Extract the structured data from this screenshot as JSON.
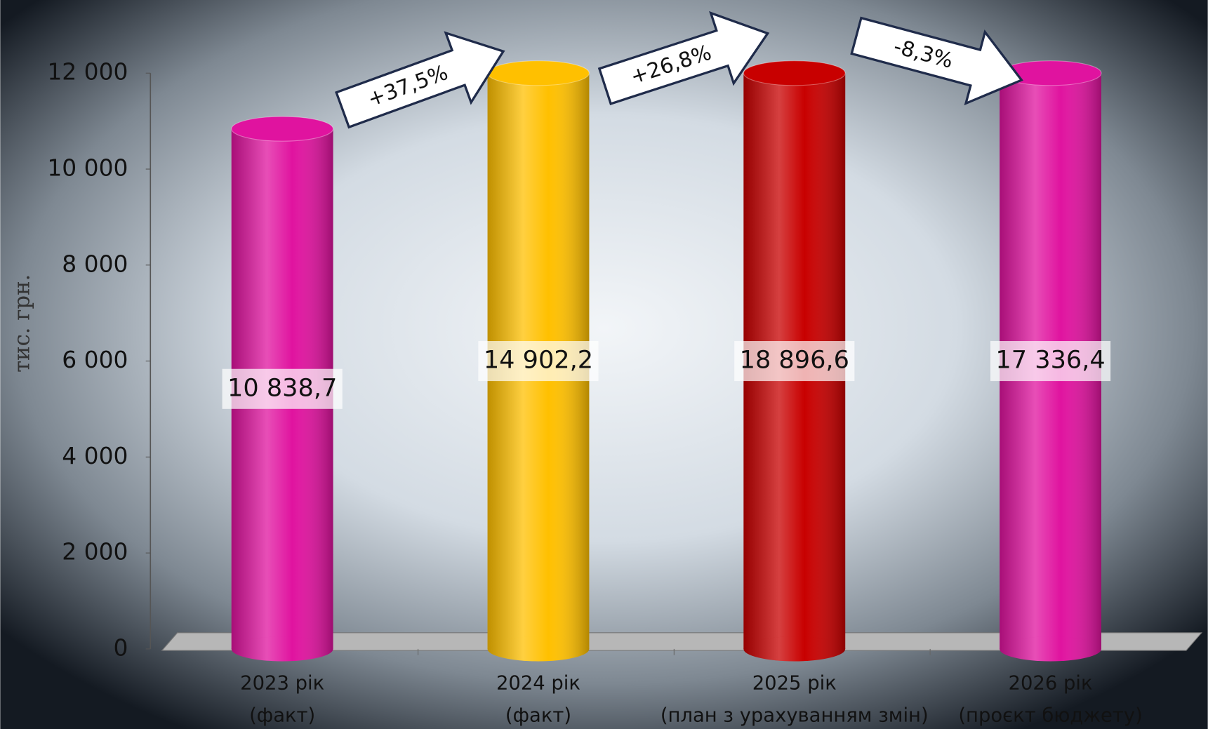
{
  "chart_data": {
    "type": "bar",
    "y_label": "тис. грн.",
    "categories": [
      [
        "2023 рік",
        "(факт)"
      ],
      [
        "2024 рік",
        "(факт)"
      ],
      [
        "2025 рік",
        "(план з урахуванням змін)"
      ],
      [
        "2026 рік",
        "(проєкт бюджету)"
      ]
    ],
    "values": [
      10838.7,
      14902.2,
      18896.6,
      17336.4
    ],
    "value_labels": [
      "10 838,7",
      "14 902,2",
      "18 896,6",
      "17 336,4"
    ],
    "colors": [
      "#e0139f",
      "#ffc000",
      "#c80000",
      "#e0139f"
    ],
    "annotations": [
      "+37,5%",
      "+26,8%",
      "-8,3%"
    ],
    "ylim": [
      0,
      12000
    ],
    "yticks": [
      {
        "value": 0,
        "label": "0"
      },
      {
        "value": 2000,
        "label": "2 000"
      },
      {
        "value": 4000,
        "label": "4 000"
      },
      {
        "value": 6000,
        "label": "6 000"
      },
      {
        "value": 8000,
        "label": "8 000"
      },
      {
        "value": 10000,
        "label": "10 000"
      },
      {
        "value": 12000,
        "label": "12 000"
      }
    ]
  }
}
